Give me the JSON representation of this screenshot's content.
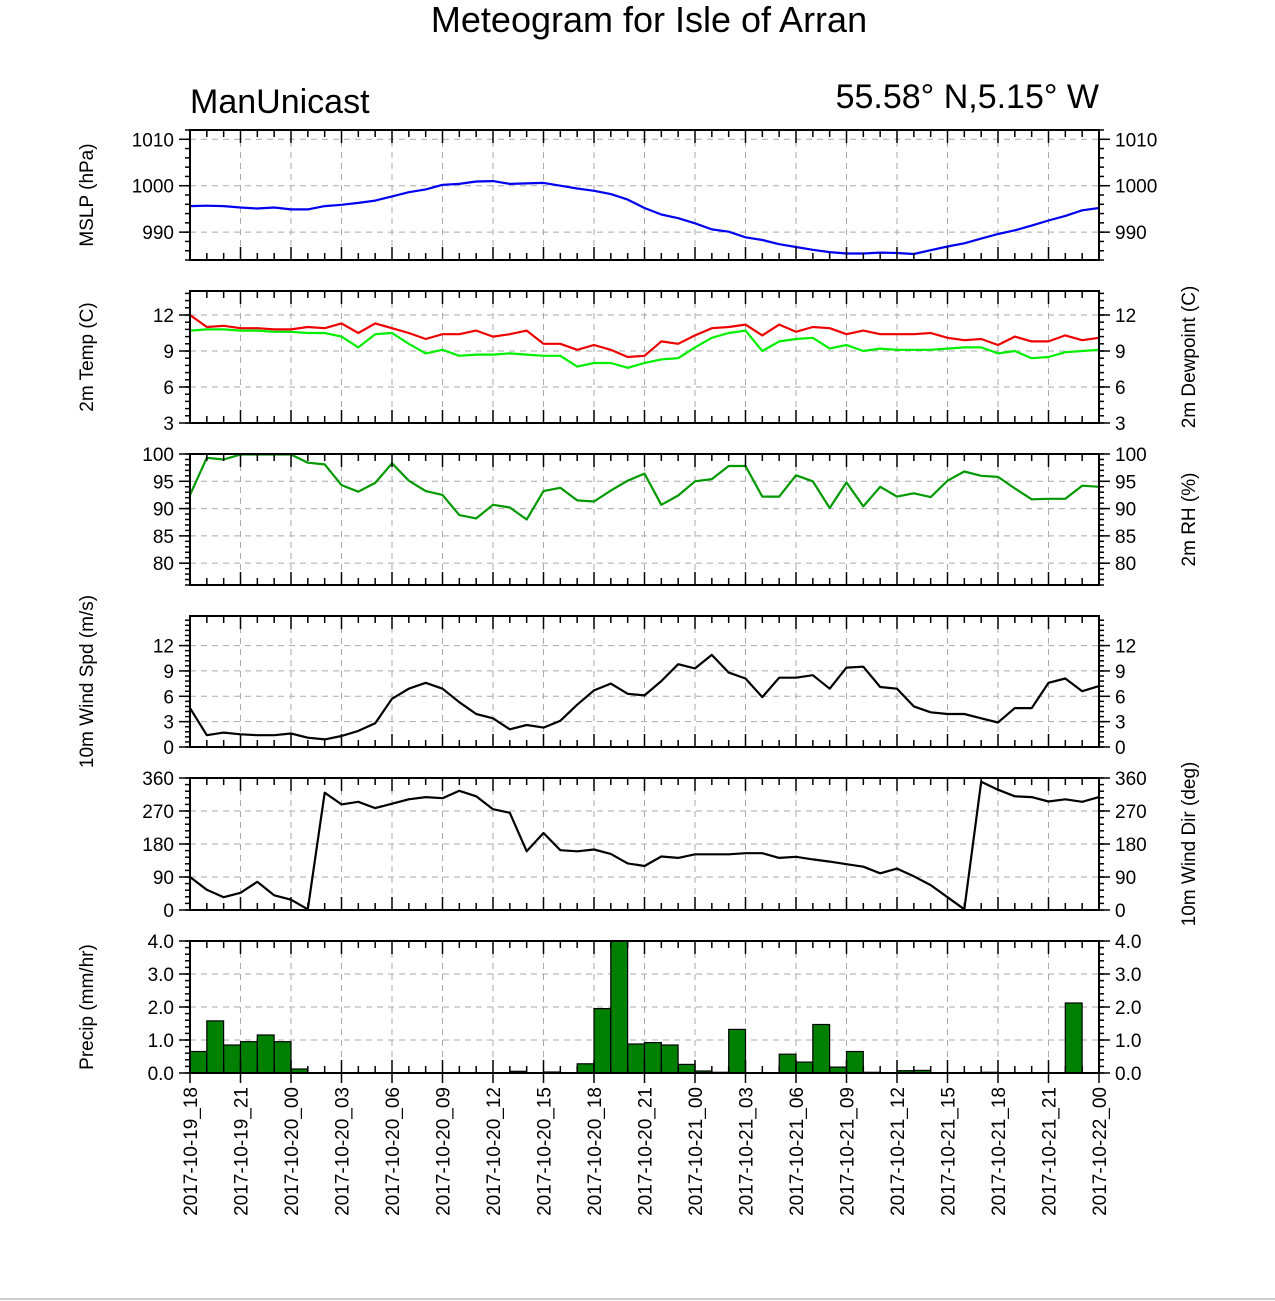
{
  "header": {
    "title": "Meteogram for Isle of Arran",
    "model": "ManUnicast",
    "location": "55.58° N,5.15° W"
  },
  "colors": {
    "mslp": "#0000ee",
    "temp": "#ee0000",
    "dewpoint": "#00ee00",
    "rh": "#009900",
    "wind_speed": "#000000",
    "wind_dir": "#000000",
    "precip_fill": "#008000",
    "precip_edge": "#000000"
  },
  "chart_data": {
    "type": "line",
    "x": [
      "2017-10-19_18",
      "2017-10-19_19",
      "2017-10-19_20",
      "2017-10-19_21",
      "2017-10-19_22",
      "2017-10-19_23",
      "2017-10-20_00",
      "2017-10-20_01",
      "2017-10-20_02",
      "2017-10-20_03",
      "2017-10-20_04",
      "2017-10-20_05",
      "2017-10-20_06",
      "2017-10-20_07",
      "2017-10-20_08",
      "2017-10-20_09",
      "2017-10-20_10",
      "2017-10-20_11",
      "2017-10-20_12",
      "2017-10-20_13",
      "2017-10-20_14",
      "2017-10-20_15",
      "2017-10-20_16",
      "2017-10-20_17",
      "2017-10-20_18",
      "2017-10-20_19",
      "2017-10-20_20",
      "2017-10-20_21",
      "2017-10-20_22",
      "2017-10-20_23",
      "2017-10-21_00",
      "2017-10-21_01",
      "2017-10-21_02",
      "2017-10-21_03",
      "2017-10-21_04",
      "2017-10-21_05",
      "2017-10-21_06",
      "2017-10-21_07",
      "2017-10-21_08",
      "2017-10-21_09",
      "2017-10-21_10",
      "2017-10-21_11",
      "2017-10-21_12",
      "2017-10-21_13",
      "2017-10-21_14",
      "2017-10-21_15",
      "2017-10-21_16",
      "2017-10-21_17",
      "2017-10-21_18",
      "2017-10-21_19",
      "2017-10-21_20",
      "2017-10-21_21",
      "2017-10-21_22",
      "2017-10-21_23",
      "2017-10-22_00"
    ],
    "x_tick_labels": [
      "2017-10-19_18",
      "2017-10-19_21",
      "2017-10-20_00",
      "2017-10-20_03",
      "2017-10-20_06",
      "2017-10-20_09",
      "2017-10-20_12",
      "2017-10-20_15",
      "2017-10-20_18",
      "2017-10-20_21",
      "2017-10-21_00",
      "2017-10-21_03",
      "2017-10-21_06",
      "2017-10-21_09",
      "2017-10-21_12",
      "2017-10-21_15",
      "2017-10-21_18",
      "2017-10-21_21",
      "2017-10-22_00"
    ],
    "panels": [
      {
        "key": "mslp",
        "type": "line",
        "ylabel_left": "MSLP (hPa)",
        "ylabel_right": "",
        "ylim": [
          984,
          1012
        ],
        "yticks": [
          990,
          1000,
          1010
        ],
        "tick_labels": [
          "990",
          "1000",
          "1010"
        ],
        "series": [
          {
            "color_key": "mslp",
            "values": [
              995.6,
              995.7,
              995.6,
              995.3,
              995.1,
              995.3,
              994.9,
              994.9,
              995.6,
              995.9,
              996.3,
              996.8,
              997.7,
              998.6,
              999.2,
              1000.2,
              1000.4,
              1000.9,
              1001.0,
              1000.4,
              1000.5,
              1000.6,
              1000.0,
              999.4,
              998.9,
              998.2,
              997.0,
              995.2,
              993.8,
              993.0,
              991.9,
              990.6,
              990.1,
              988.9,
              988.3,
              987.4,
              986.8,
              986.2,
              985.7,
              985.4,
              985.4,
              985.6,
              985.5,
              985.3,
              986.1,
              986.9,
              987.6,
              988.6,
              989.6,
              990.4,
              991.4,
              992.5,
              993.5,
              994.7,
              995.2
            ]
          }
        ]
      },
      {
        "key": "temp",
        "type": "line",
        "ylabel_left": "2m Temp (C)",
        "ylabel_right": "2m Dewpoint (C)",
        "ylim": [
          3,
          14
        ],
        "yticks": [
          3,
          6,
          9,
          12
        ],
        "tick_labels": [
          "3",
          "6",
          "9",
          "12"
        ],
        "series": [
          {
            "color_key": "temp",
            "values": [
              12.0,
              11.0,
              11.1,
              10.9,
              10.9,
              10.8,
              10.8,
              11.0,
              10.9,
              11.3,
              10.5,
              11.3,
              10.9,
              10.5,
              10.0,
              10.4,
              10.4,
              10.7,
              10.2,
              10.4,
              10.7,
              9.6,
              9.6,
              9.1,
              9.5,
              9.1,
              8.5,
              8.6,
              9.8,
              9.6,
              10.3,
              10.9,
              11.0,
              11.2,
              10.3,
              11.2,
              10.6,
              11.0,
              10.9,
              10.4,
              10.7,
              10.4,
              10.4,
              10.4,
              10.5,
              10.1,
              9.9,
              10.0,
              9.5,
              10.2,
              9.8,
              9.8,
              10.3,
              9.9,
              10.1
            ]
          },
          {
            "color_key": "dewpoint",
            "values": [
              10.7,
              10.8,
              10.8,
              10.7,
              10.7,
              10.6,
              10.6,
              10.5,
              10.5,
              10.2,
              9.3,
              10.4,
              10.5,
              9.6,
              8.8,
              9.1,
              8.6,
              8.7,
              8.7,
              8.8,
              8.7,
              8.6,
              8.6,
              7.7,
              8.0,
              8.0,
              7.6,
              8.0,
              8.3,
              8.4,
              9.3,
              10.1,
              10.5,
              10.7,
              9.0,
              9.8,
              10.0,
              10.1,
              9.2,
              9.5,
              9.0,
              9.2,
              9.1,
              9.1,
              9.1,
              9.2,
              9.3,
              9.3,
              8.8,
              9.0,
              8.4,
              8.5,
              8.9,
              9.0,
              9.1
            ]
          }
        ]
      },
      {
        "key": "rh",
        "type": "line",
        "ylabel_left": "",
        "ylabel_right": "2m RH (%)",
        "ylim": [
          76,
          100
        ],
        "yticks": [
          80,
          85,
          90,
          95,
          100
        ],
        "tick_labels": [
          "80",
          "85",
          "90",
          "95",
          "100"
        ],
        "series": [
          {
            "color_key": "rh",
            "values": [
              92.5,
              99.3,
              99.0,
              99.9,
              99.9,
              99.9,
              99.9,
              98.4,
              98.1,
              94.3,
              93.1,
              94.7,
              98.3,
              95.1,
              93.2,
              92.5,
              88.8,
              88.2,
              90.7,
              90.2,
              88.0,
              93.2,
              93.8,
              91.5,
              91.3,
              93.3,
              95.1,
              96.4,
              90.7,
              92.4,
              95.0,
              95.4,
              97.8,
              97.8,
              92.2,
              92.2,
              96.1,
              95.0,
              90.1,
              94.8,
              90.4,
              94.0,
              92.2,
              92.8,
              92.1,
              95.1,
              96.8,
              96.0,
              95.8,
              93.7,
              91.7,
              91.8,
              91.8,
              94.2,
              94.0
            ]
          }
        ]
      },
      {
        "key": "wind_speed",
        "type": "line",
        "ylabel_left": "10m Wind Spd (m/s)",
        "ylabel_right": "",
        "ylim": [
          0,
          15.5
        ],
        "yticks": [
          0,
          3,
          6,
          9,
          12
        ],
        "tick_labels": [
          "0",
          "3",
          "6",
          "9",
          "12"
        ],
        "series": [
          {
            "color_key": "wind_speed",
            "values": [
              4.6,
              1.4,
              1.7,
              1.5,
              1.4,
              1.4,
              1.6,
              1.1,
              0.9,
              1.3,
              1.9,
              2.8,
              5.7,
              6.9,
              7.6,
              6.9,
              5.3,
              3.9,
              3.4,
              2.1,
              2.6,
              2.3,
              3.1,
              5.0,
              6.7,
              7.5,
              6.3,
              6.1,
              7.8,
              9.8,
              9.3,
              10.9,
              8.8,
              8.1,
              5.9,
              8.2,
              8.2,
              8.5,
              6.9,
              9.4,
              9.5,
              7.1,
              6.9,
              4.8,
              4.1,
              3.9,
              3.9,
              3.4,
              2.9,
              4.6,
              4.6,
              7.6,
              8.1,
              6.6,
              7.2
            ]
          }
        ]
      },
      {
        "key": "wind_dir",
        "type": "line",
        "ylabel_left": "",
        "ylabel_right": "10m Wind Dir (deg)",
        "ylim": [
          0,
          360
        ],
        "yticks": [
          0,
          90,
          180,
          270,
          360
        ],
        "tick_labels": [
          "0",
          "90",
          "180",
          "270",
          "360"
        ],
        "series": [
          {
            "color_key": "wind_dir",
            "values": [
              90,
              55,
              35,
              47,
              77,
              40,
              28,
              2,
              320,
              288,
              295,
              278,
              290,
              302,
              308,
              305,
              325,
              310,
              275,
              265,
              160,
              210,
              163,
              160,
              165,
              153,
              127,
              120,
              146,
              142,
              152,
              152,
              152,
              155,
              155,
              142,
              145,
              138,
              132,
              125,
              118,
              100,
              113,
              92,
              68,
              35,
              2,
              350,
              328,
              310,
              308,
              296,
              302,
              295,
              308
            ]
          }
        ]
      },
      {
        "key": "precip",
        "type": "bar",
        "ylabel_left": "Precip (mm/hr)",
        "ylabel_right": "",
        "ylim": [
          0,
          4.0
        ],
        "yticks": [
          0,
          1,
          2,
          3,
          4
        ],
        "tick_labels": [
          "0.0",
          "1.0",
          "2.0",
          "3.0",
          "4.0"
        ],
        "series": [
          {
            "color_key": "precip_fill",
            "values": [
              0.65,
              1.58,
              0.85,
              0.95,
              1.15,
              0.95,
              0.12,
              0.0,
              0.0,
              0.0,
              0.0,
              0.0,
              0.0,
              0.0,
              0.0,
              0.0,
              0.0,
              0.0,
              0.0,
              0.05,
              0.0,
              0.03,
              0.0,
              0.28,
              1.95,
              4.0,
              0.88,
              0.92,
              0.85,
              0.26,
              0.06,
              0.02,
              1.32,
              0.0,
              0.0,
              0.57,
              0.33,
              1.47,
              0.18,
              0.65,
              0.02,
              0.0,
              0.07,
              0.08,
              0.0,
              0.0,
              0.0,
              0.02,
              0.0,
              0.0,
              0.0,
              0.0,
              2.12,
              0.0
            ]
          }
        ]
      }
    ]
  }
}
